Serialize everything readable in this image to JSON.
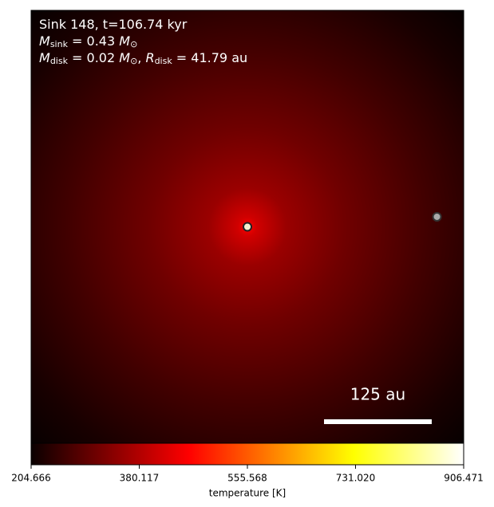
{
  "chart_data": {
    "type": "image",
    "info_lines": [
      [
        {
          "t": "Sink 148, t=106.74 kyr"
        }
      ],
      [
        {
          "t": "M",
          "style": "italic"
        },
        {
          "t": "sink",
          "style": "sub"
        },
        {
          "t": " = 0.43 "
        },
        {
          "t": "M",
          "style": "italic"
        },
        {
          "t": "⊙",
          "style": "sub"
        }
      ],
      [
        {
          "t": "M",
          "style": "italic"
        },
        {
          "t": "disk",
          "style": "sub"
        },
        {
          "t": " = 0.02 "
        },
        {
          "t": "M",
          "style": "italic"
        },
        {
          "t": "⊙",
          "style": "sub"
        },
        {
          "t": ", "
        },
        {
          "t": "R",
          "style": "italic"
        },
        {
          "t": "disk",
          "style": "sub"
        },
        {
          "t": " = 41.79 au"
        }
      ]
    ],
    "xlim": [
      -251,
      251
    ],
    "ylim": [
      -251,
      251
    ],
    "sinks": [
      {
        "x": 0,
        "y": 0,
        "color": "#f5f0d0",
        "edge": "#222"
      },
      {
        "x": 220,
        "y": 11.6,
        "color": "#aaaaaa",
        "edge": "#333"
      }
    ],
    "scale_bar": {
      "length": 125,
      "label": "125 au",
      "color": "#ffffff"
    },
    "colormap": "hot",
    "colorbar": {
      "label": "temperature [K]",
      "clim": [
        204.666,
        906.471
      ],
      "ticks": [
        204.666,
        380.117,
        555.568,
        {
          "value": 731.02,
          "label": "731.020"
        },
        906.471
      ]
    }
  }
}
